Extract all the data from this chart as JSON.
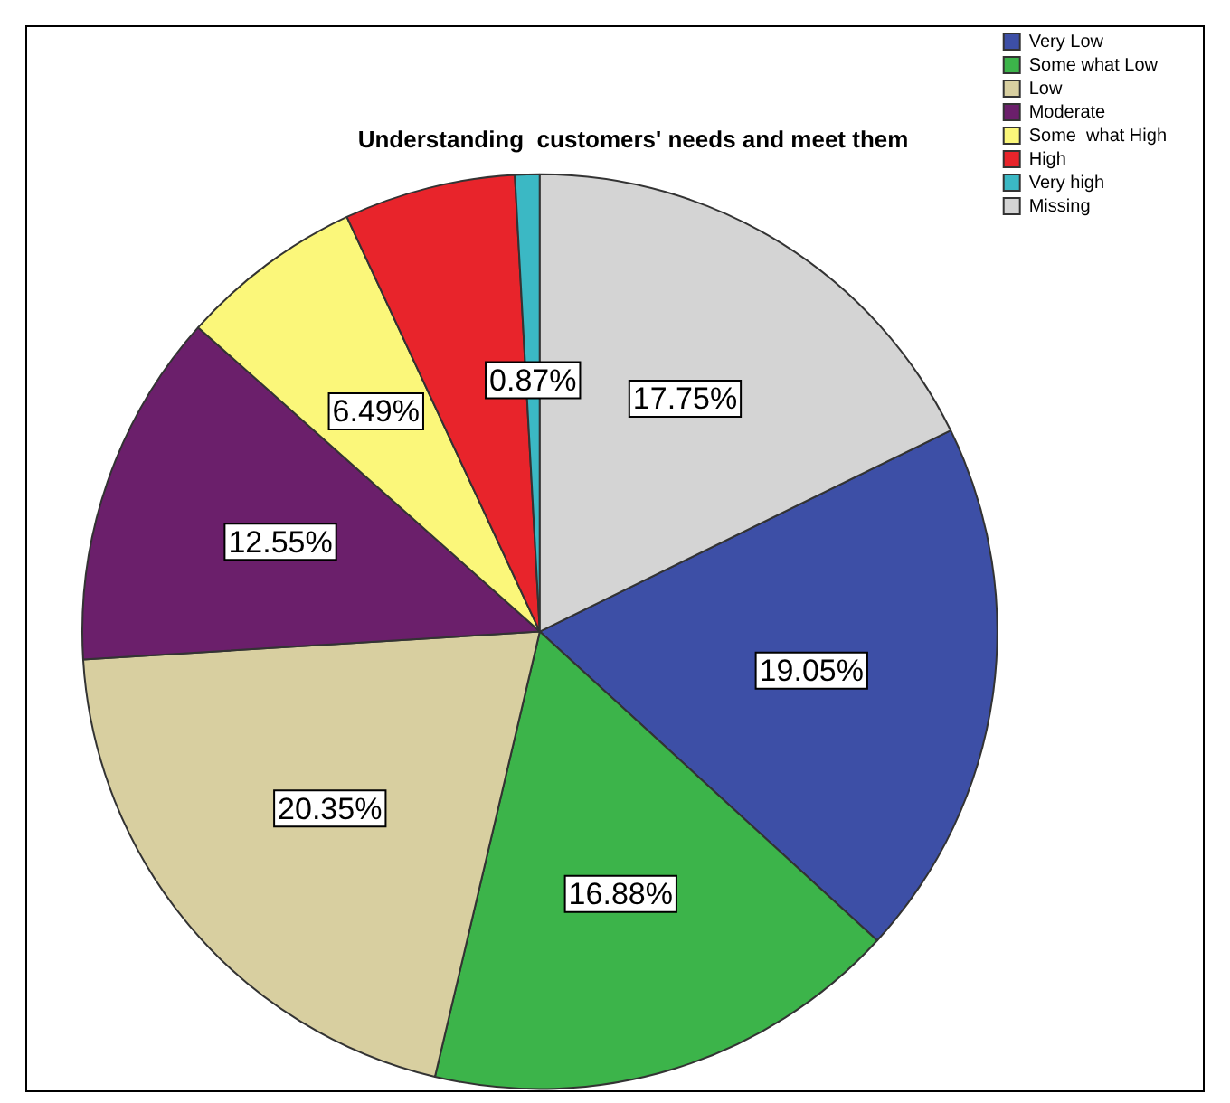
{
  "chart_data": {
    "type": "pie",
    "title": "Understanding  customers' needs and meet them",
    "categories": [
      "Very Low",
      "Some what Low",
      "Low",
      "Moderate",
      "Some  what High",
      "High",
      "Very high",
      "Missing"
    ],
    "values": [
      19.05,
      16.88,
      20.35,
      12.55,
      6.49,
      6.06,
      0.87,
      17.75
    ],
    "colors": [
      "#3d4fa6",
      "#3cb44a",
      "#d8cfa0",
      "#6b1f6b",
      "#fbf77a",
      "#e8242b",
      "#3bb8c4",
      "#d4d4d4"
    ],
    "value_labels": [
      "19.05%",
      "16.88%",
      "20.35%",
      "12.55%",
      "6.49%",
      null,
      "0.87%",
      "17.75%"
    ],
    "legend": "top right"
  }
}
